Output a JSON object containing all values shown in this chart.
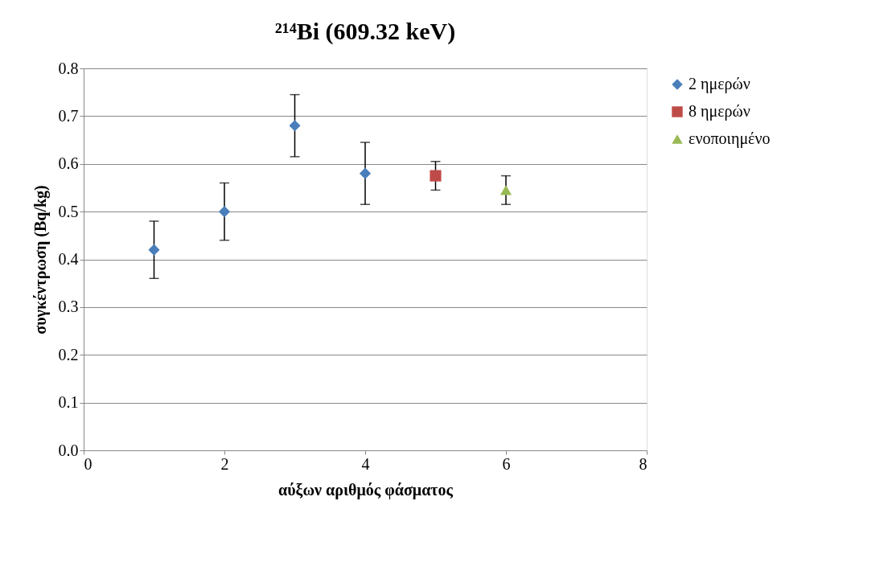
{
  "chart_data": {
    "type": "scatter",
    "title": "²¹⁴Bi (609.32 keV)",
    "xlabel": "αύξων αριθμός φάσματος",
    "ylabel": "συγκέντρωση (Bq/kg)",
    "xlim": [
      0,
      8
    ],
    "xticks": [
      0,
      2,
      4,
      6,
      8
    ],
    "ylim": [
      0,
      0.8
    ],
    "yticks": [
      {
        "value": 0,
        "label": "0.0"
      },
      0.1,
      0.2,
      0.3,
      0.4,
      0.5,
      0.6,
      0.7,
      0.8
    ],
    "grid": "y",
    "legend": "right",
    "series": [
      {
        "name": "2 ημερών",
        "color": "#4a7ebb",
        "marker": "diamond",
        "x": [
          1,
          2,
          3,
          4
        ],
        "values": [
          0.42,
          0.5,
          0.68,
          0.58
        ],
        "errors": [
          0.06,
          0.06,
          0.065,
          0.065
        ]
      },
      {
        "name": "8 ημερών",
        "color": "#be4b48",
        "marker": "square",
        "x": [
          5
        ],
        "values": [
          0.575
        ],
        "errors": [
          0.03
        ]
      },
      {
        "name": "ενοποιημένο",
        "color": "#98b954",
        "marker": "triangle",
        "x": [
          6
        ],
        "values": [
          0.545
        ],
        "errors": [
          0.03
        ]
      }
    ]
  }
}
